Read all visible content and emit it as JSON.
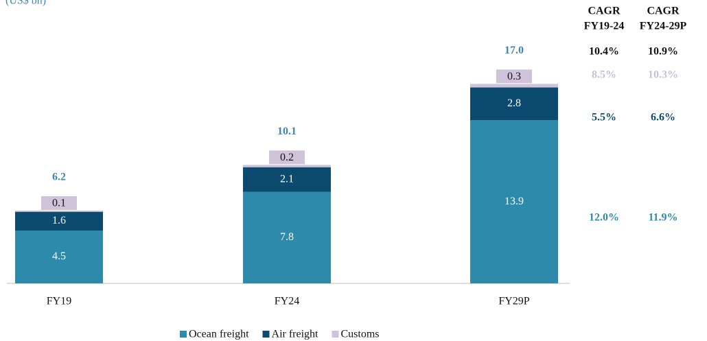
{
  "chart_data": {
    "type": "stacked_bar",
    "subtitle": "(US$ bn)",
    "categories": [
      "FY19",
      "FY24",
      "FY29P"
    ],
    "series": [
      {
        "name": "Ocean freight",
        "color": "#2e8aab",
        "values": [
          4.5,
          7.8,
          13.9
        ]
      },
      {
        "name": "Air freight",
        "color": "#0c4a70",
        "values": [
          1.6,
          2.1,
          2.8
        ]
      },
      {
        "name": "Customs",
        "color": "#cfc3d9",
        "values": [
          0.1,
          0.2,
          0.3
        ]
      }
    ],
    "totals": [
      6.2,
      10.1,
      17.0
    ],
    "total_labels": [
      "6.2",
      "10.1",
      "17.0"
    ],
    "total_color": "#3f86b5",
    "cagr_table": {
      "headers": [
        [
          "CAGR",
          "FY19-24"
        ],
        [
          "CAGR",
          "FY24-29P"
        ]
      ],
      "rows": [
        {
          "color": "#111111",
          "cells": [
            "10.4%",
            "10.9%"
          ]
        },
        {
          "color": "#c9bfd6",
          "cells": [
            "8.5%",
            "10.3%"
          ]
        },
        {
          "color": "#0c4a70",
          "cells": [
            "5.5%",
            "6.6%"
          ]
        },
        {
          "color": "#2e8aab",
          "cells": [
            "12.0%",
            "11.9%"
          ]
        }
      ]
    }
  }
}
